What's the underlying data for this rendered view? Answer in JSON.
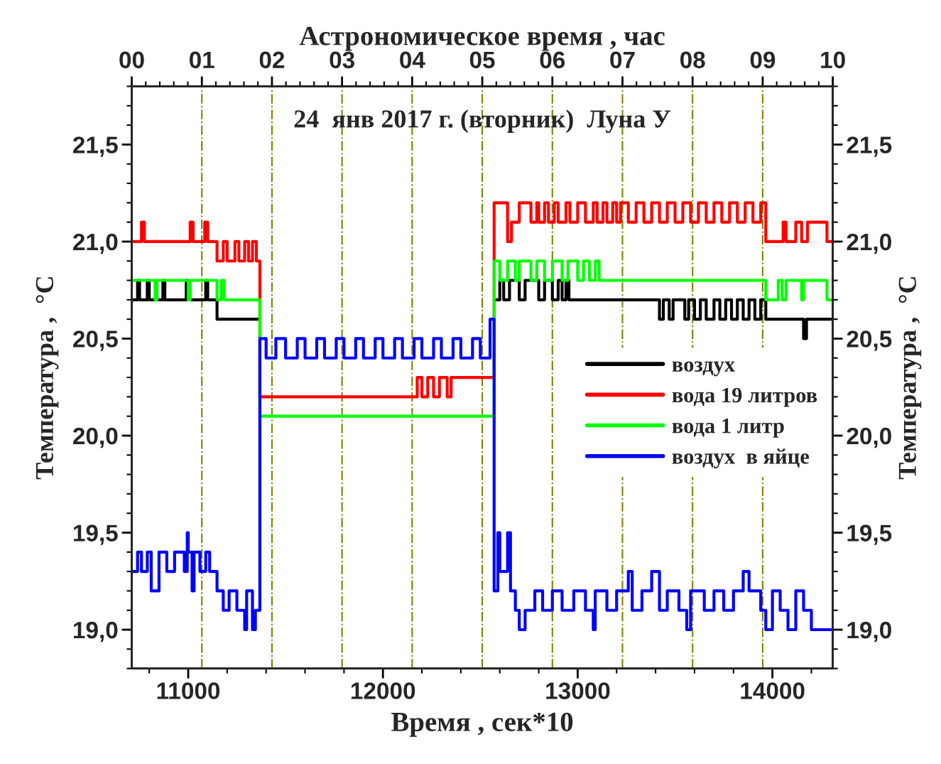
{
  "chart_data": {
    "type": "step",
    "title": "24  янв 2017 г. (вторник)  Луна У",
    "xlabel": "Время , сек*10",
    "x2label": "Астрономическое время , час",
    "ylabel": "Температура ,  °C",
    "y2label": "Температура ,  °C",
    "xlim": [
      10710,
      14310
    ],
    "xticks": [
      11000,
      12000,
      13000,
      14000
    ],
    "x2lim": [
      0,
      10
    ],
    "x2ticks": [
      {
        "value": 0,
        "label": "00"
      },
      {
        "value": 1,
        "label": "01"
      },
      {
        "value": 2,
        "label": "02"
      },
      {
        "value": 3,
        "label": "03"
      },
      {
        "value": 4,
        "label": "04"
      },
      {
        "value": 5,
        "label": "05"
      },
      {
        "value": 6,
        "label": "06"
      },
      {
        "value": 7,
        "label": "07"
      },
      {
        "value": 8,
        "label": "08"
      },
      {
        "value": 9,
        "label": "09"
      },
      {
        "value": 10,
        "label": "10"
      }
    ],
    "ylim": [
      18.8,
      21.8
    ],
    "yticks": [
      {
        "value": 19.0,
        "label": "19,0"
      },
      {
        "value": 19.5,
        "label": "19,5"
      },
      {
        "value": 20.0,
        "label": "20,0"
      },
      {
        "value": 20.5,
        "label": "20,5"
      },
      {
        "value": 21.0,
        "label": "21,0"
      },
      {
        "value": 21.5,
        "label": "21,5"
      }
    ],
    "y2lim": [
      18.8,
      21.8
    ],
    "y2ticks": [
      {
        "value": 19.0,
        "label": "19,0"
      },
      {
        "value": 19.5,
        "label": "19,5"
      },
      {
        "value": 20.0,
        "label": "20,0"
      },
      {
        "value": 20.5,
        "label": "20,5"
      },
      {
        "value": 21.0,
        "label": "21,0"
      },
      {
        "value": 21.5,
        "label": "21,5"
      }
    ],
    "grid": false,
    "legend": "right",
    "ref_lines": [
      {
        "axis": "x",
        "value": 11070,
        "color": "#808000",
        "line_style": "dashdot"
      },
      {
        "axis": "x",
        "value": 11430,
        "color": "#808000",
        "line_style": "dashdot"
      },
      {
        "axis": "x",
        "value": 11790,
        "color": "#808000",
        "line_style": "dashdot"
      },
      {
        "axis": "x",
        "value": 12150,
        "color": "#808000",
        "line_style": "dashdot"
      },
      {
        "axis": "x",
        "value": 12510,
        "color": "#808000",
        "line_style": "dashdot"
      },
      {
        "axis": "x",
        "value": 12870,
        "color": "#808000",
        "line_style": "dashdot"
      },
      {
        "axis": "x",
        "value": 13230,
        "color": "#808000",
        "line_style": "dashdot"
      },
      {
        "axis": "x",
        "value": 13590,
        "color": "#808000",
        "line_style": "dashdot"
      },
      {
        "axis": "x",
        "value": 13950,
        "color": "#808000",
        "line_style": "dashdot"
      }
    ],
    "series": [
      {
        "name": "воздух",
        "color": "#000000",
        "x": [
          10710,
          10740,
          10750,
          10790,
          10800,
          10870,
          10880,
          10990,
          11000,
          11090,
          11100,
          11148,
          11368,
          12571,
          12600,
          12620,
          12650,
          12700,
          12730,
          12800,
          12830,
          12870,
          12900,
          12920,
          12940,
          12955,
          13420,
          13440,
          13470,
          13490,
          13550,
          13570,
          13600,
          13630,
          13660,
          13700,
          13730,
          13760,
          13790,
          13820,
          13850,
          13880,
          13910,
          13940,
          13966,
          14160,
          14175,
          14300
        ],
        "values": [
          20.7,
          20.8,
          20.7,
          20.8,
          20.7,
          20.8,
          20.7,
          20.8,
          20.7,
          20.8,
          20.7,
          20.6,
          null,
          20.7,
          20.8,
          20.7,
          20.8,
          20.7,
          20.8,
          20.7,
          20.8,
          20.7,
          20.8,
          20.7,
          20.8,
          20.7,
          20.6,
          20.7,
          20.6,
          20.7,
          20.6,
          20.7,
          20.6,
          20.7,
          20.6,
          20.7,
          20.6,
          20.7,
          20.6,
          20.7,
          20.6,
          20.7,
          20.6,
          20.7,
          20.6,
          20.5,
          20.6,
          20.6
        ]
      },
      {
        "name": "вода 19 литров",
        "color": "#ff0000",
        "x": [
          10710,
          10760,
          10775,
          11010,
          11025,
          11085,
          11100,
          11148,
          11180,
          11200,
          11240,
          11260,
          11290,
          11310,
          11330,
          11350,
          11368,
          12176,
          12200,
          12230,
          12260,
          12290,
          12330,
          12350,
          12571,
          12640,
          12660,
          12700,
          12760,
          12790,
          12800,
          12830,
          12850,
          12880,
          12900,
          12940,
          12960,
          13000,
          13040,
          13080,
          13100,
          13130,
          13150,
          13180,
          13200,
          13220,
          13260,
          13300,
          13340,
          13380,
          13420,
          13460,
          13500,
          13540,
          13580,
          13620,
          13660,
          13700,
          13740,
          13780,
          13820,
          13860,
          13900,
          13940,
          13966,
          14055,
          14070,
          14120,
          14150,
          14180,
          14280,
          14300
        ],
        "values": [
          21.0,
          21.1,
          21.0,
          21.1,
          21.0,
          21.1,
          21.0,
          20.9,
          21.0,
          20.9,
          21.0,
          20.9,
          21.0,
          20.9,
          21.0,
          20.9,
          20.2,
          20.3,
          20.2,
          20.3,
          20.2,
          20.3,
          20.2,
          20.3,
          21.2,
          21.0,
          21.1,
          21.2,
          21.1,
          21.2,
          21.1,
          21.2,
          21.1,
          21.2,
          21.1,
          21.2,
          21.1,
          21.2,
          21.1,
          21.2,
          21.1,
          21.2,
          21.1,
          21.2,
          21.1,
          21.2,
          21.1,
          21.2,
          21.1,
          21.2,
          21.1,
          21.2,
          21.1,
          21.2,
          21.1,
          21.2,
          21.1,
          21.2,
          21.1,
          21.2,
          21.1,
          21.2,
          21.1,
          21.2,
          21.0,
          21.1,
          21.0,
          21.1,
          21.0,
          21.1,
          21.0,
          21.0
        ]
      },
      {
        "name": "вода 1 литр",
        "color": "#00ff00",
        "x": [
          10710,
          10830,
          10840,
          11000,
          11010,
          11148,
          11170,
          11185,
          11368,
          12571,
          12600,
          12640,
          12680,
          12700,
          12760,
          12790,
          12830,
          12870,
          12920,
          12950,
          13000,
          13030,
          13060,
          13090,
          13110,
          13966,
          14030,
          14050,
          14070,
          14150,
          14160,
          14280,
          14300
        ],
        "values": [
          20.8,
          20.7,
          20.8,
          20.7,
          20.8,
          20.7,
          20.8,
          20.7,
          20.1,
          20.9,
          20.8,
          20.9,
          20.8,
          20.9,
          20.8,
          20.9,
          20.8,
          20.9,
          20.8,
          20.9,
          20.8,
          20.9,
          20.8,
          20.9,
          20.8,
          20.7,
          20.8,
          20.7,
          20.8,
          20.7,
          20.8,
          20.7,
          20.7
        ]
      },
      {
        "name": "воздух  в яйце",
        "color": "#0000ff",
        "x": [
          10710,
          10740,
          10760,
          10790,
          10810,
          10850,
          10890,
          10930,
          10980,
          10995,
          11000,
          11020,
          11030,
          11060,
          11090,
          11110,
          11148,
          11180,
          11210,
          11250,
          11290,
          11300,
          11330,
          11345,
          11368,
          11400,
          11450,
          11500,
          11560,
          11600,
          11660,
          11700,
          11760,
          11800,
          11860,
          11900,
          11960,
          12000,
          12060,
          12100,
          12160,
          12200,
          12260,
          12300,
          12360,
          12400,
          12460,
          12500,
          12550,
          12571,
          12590,
          12600,
          12640,
          12655,
          12680,
          12700,
          12730,
          12780,
          12820,
          12870,
          12920,
          12980,
          13040,
          13080,
          13090,
          13150,
          13200,
          13260,
          13280,
          13330,
          13380,
          13420,
          13460,
          13520,
          13560,
          13580,
          13650,
          13700,
          13750,
          13800,
          13850,
          13880,
          13940,
          13966,
          14000,
          14040,
          14080,
          14120,
          14160,
          14200,
          14300
        ],
        "values": [
          19.3,
          19.4,
          19.3,
          19.4,
          19.2,
          19.4,
          19.3,
          19.4,
          19.3,
          19.5,
          19.4,
          19.2,
          19.4,
          19.3,
          19.4,
          19.3,
          19.2,
          19.1,
          19.2,
          19.1,
          19.0,
          19.2,
          19.0,
          19.1,
          20.5,
          20.4,
          20.5,
          20.4,
          20.5,
          20.4,
          20.5,
          20.4,
          20.5,
          20.4,
          20.5,
          20.4,
          20.5,
          20.4,
          20.5,
          20.4,
          20.5,
          20.4,
          20.5,
          20.4,
          20.5,
          20.4,
          20.5,
          20.4,
          20.6,
          19.2,
          19.5,
          19.3,
          19.5,
          19.2,
          19.1,
          19.0,
          19.1,
          19.2,
          19.1,
          19.2,
          19.1,
          19.2,
          19.1,
          19.0,
          19.2,
          19.1,
          19.2,
          19.3,
          19.1,
          19.2,
          19.3,
          19.1,
          19.2,
          19.1,
          19.0,
          19.2,
          19.1,
          19.2,
          19.1,
          19.2,
          19.3,
          19.2,
          19.1,
          19.0,
          19.2,
          19.1,
          19.0,
          19.2,
          19.1,
          19.0,
          19.0
        ]
      }
    ]
  }
}
